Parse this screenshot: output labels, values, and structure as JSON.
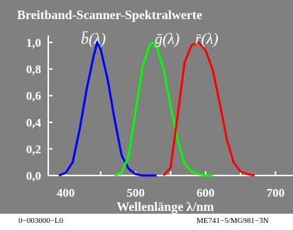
{
  "footer": {
    "left": "0−003000−L0",
    "right": "ME741−5/MG981−3N"
  },
  "chart_data": {
    "type": "line",
    "title": "Breitband-Scanner-Spektralwerte",
    "xlabel": "Wellenlänge λ/nm",
    "ylabel": "",
    "xlim": [
      375,
      725
    ],
    "ylim": [
      0,
      1.05
    ],
    "x_ticks": [
      400,
      500,
      600,
      700
    ],
    "y_ticks": [
      "0,0",
      "0,2",
      "0,4",
      "0,6",
      "0,8",
      "1,0"
    ],
    "y_tick_values": [
      0,
      0.2,
      0.4,
      0.6,
      0.8,
      1.0
    ],
    "grid": false,
    "background": "#808080",
    "series": [
      {
        "name": "b̄(λ)",
        "color": "#0000ff",
        "x": [
          390,
          400,
          410,
          420,
          430,
          440,
          445,
          450,
          460,
          470,
          480,
          490,
          500,
          510,
          520,
          530
        ],
        "y": [
          0.0,
          0.02,
          0.1,
          0.35,
          0.65,
          0.9,
          1.0,
          0.95,
          0.72,
          0.42,
          0.15,
          0.05,
          0.01,
          0.0,
          0.0,
          0.0
        ]
      },
      {
        "name": "ḡ(λ)",
        "color": "#00ff00",
        "x": [
          470,
          480,
          490,
          500,
          510,
          520,
          525,
          530,
          540,
          550,
          560,
          570,
          580,
          590,
          600,
          610
        ],
        "y": [
          0.0,
          0.02,
          0.15,
          0.48,
          0.82,
          0.98,
          1.0,
          0.97,
          0.8,
          0.52,
          0.27,
          0.09,
          0.03,
          0.01,
          0.0,
          0.0
        ]
      },
      {
        "name": "r̄(λ)",
        "color": "#ff0000",
        "x": [
          540,
          550,
          560,
          570,
          580,
          590,
          600,
          610,
          620,
          630,
          640,
          650,
          660,
          670
        ],
        "y": [
          0.0,
          0.06,
          0.45,
          0.85,
          0.98,
          1.0,
          0.94,
          0.8,
          0.55,
          0.28,
          0.1,
          0.03,
          0.01,
          0.0
        ]
      }
    ]
  }
}
